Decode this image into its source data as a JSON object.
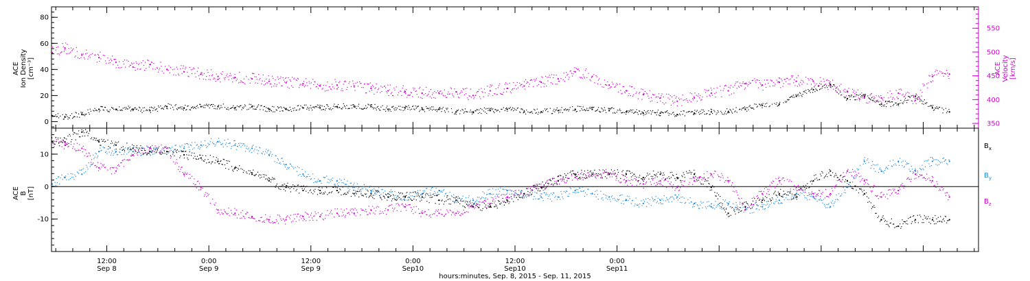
{
  "colors": {
    "density": "#000000",
    "velocity": "#cc00cc",
    "bx": "#000000",
    "by": "#1e88d8",
    "bz": "#cc00cc",
    "frame": "#000000"
  },
  "chart_data": [
    {
      "type": "scatter",
      "panel": "top",
      "ylabel_lines": [
        "ACE",
        "Ion Density",
        "[cm⁻³]"
      ],
      "y2label_lines": [
        "ACE",
        "Velocity",
        "[km/s]"
      ],
      "ylim": [
        -5,
        88
      ],
      "y2lim": [
        340,
        595
      ],
      "yticks": [
        0,
        20,
        40,
        60,
        80
      ],
      "y2ticks": [
        350,
        400,
        450,
        500,
        550
      ],
      "x_unit": "hours since Sep 8, 2015 00:00",
      "xlim": [
        5.5,
        114.5
      ],
      "series": [
        {
          "name": "Ion Density",
          "axis": "left",
          "x": [
            5.5,
            7,
            9,
            11,
            13,
            15,
            17,
            19,
            21,
            23,
            25,
            27,
            29,
            31,
            33,
            35,
            37,
            39,
            41,
            43,
            45,
            47,
            49,
            51,
            53,
            55,
            57,
            59,
            61,
            63,
            65,
            67,
            69,
            71,
            73,
            75,
            77,
            79,
            81,
            83,
            85,
            87,
            89,
            91,
            93,
            95,
            97,
            99,
            101,
            103,
            105,
            107,
            109,
            111
          ],
          "y": [
            5,
            4,
            6,
            10,
            10,
            10,
            9,
            12,
            11,
            12,
            12,
            11,
            12,
            10,
            10,
            11,
            11,
            12,
            12,
            12,
            10,
            11,
            10,
            10,
            8,
            8,
            9,
            10,
            8,
            8,
            9,
            10,
            10,
            9,
            8,
            7,
            7,
            6,
            7,
            8,
            8,
            10,
            13,
            14,
            20,
            25,
            29,
            18,
            20,
            14,
            14,
            20,
            11,
            8
          ]
        },
        {
          "name": "Velocity",
          "axis": "right",
          "x": [
            5.5,
            7,
            9,
            11,
            13,
            15,
            17,
            19,
            21,
            23,
            25,
            27,
            29,
            31,
            33,
            35,
            37,
            39,
            41,
            43,
            45,
            47,
            49,
            51,
            53,
            55,
            57,
            59,
            61,
            63,
            65,
            67,
            69,
            71,
            73,
            75,
            77,
            79,
            81,
            83,
            85,
            87,
            89,
            91,
            93,
            95,
            97,
            99,
            101,
            103,
            105,
            107,
            109,
            111
          ],
          "y": [
            500,
            510,
            495,
            490,
            480,
            470,
            475,
            465,
            460,
            455,
            450,
            448,
            445,
            440,
            437,
            435,
            430,
            432,
            430,
            425,
            420,
            418,
            415,
            415,
            418,
            410,
            420,
            425,
            430,
            438,
            445,
            460,
            450,
            432,
            420,
            412,
            405,
            398,
            405,
            415,
            420,
            435,
            432,
            438,
            440,
            440,
            432,
            418,
            405,
            405,
            415,
            400,
            450,
            455
          ]
        }
      ]
    },
    {
      "type": "scatter",
      "panel": "bottom",
      "ylabel_lines": [
        "ACE",
        "B",
        "[nT]"
      ],
      "ylim": [
        -20,
        18
      ],
      "yticks": [
        -10,
        0,
        10
      ],
      "zero_line": true,
      "x_unit": "hours since Sep 8, 2015 00:00",
      "xlim": [
        5.5,
        114.5
      ],
      "series": [
        {
          "name": "Bₓ",
          "label": "B",
          "sub": "x",
          "x": [
            5.5,
            7,
            9,
            11,
            13,
            15,
            17,
            19,
            21,
            23,
            25,
            27,
            29,
            31,
            33,
            35,
            37,
            39,
            41,
            43,
            45,
            47,
            49,
            51,
            53,
            55,
            57,
            59,
            61,
            63,
            65,
            67,
            69,
            71,
            73,
            75,
            77,
            79,
            81,
            83,
            85,
            87,
            89,
            91,
            93,
            95,
            97,
            99,
            101,
            103,
            105,
            107,
            109,
            111
          ],
          "y": [
            14,
            14,
            17,
            14,
            13,
            12,
            11,
            11,
            10,
            9,
            8,
            6,
            4,
            2,
            0,
            -1,
            -1,
            -1,
            -2,
            -2,
            -3,
            -3,
            -3,
            -4,
            -4,
            -6,
            -6,
            -4,
            -2,
            0,
            2,
            4,
            4,
            4,
            4,
            3,
            4,
            3,
            4,
            0,
            -8,
            -6,
            -4,
            -2,
            -3,
            2,
            5,
            2,
            -2,
            -10,
            -12,
            -10,
            -10,
            -10
          ]
        },
        {
          "name": "Bᵧ",
          "label": "B",
          "sub": "y",
          "x": [
            5.5,
            7,
            9,
            11,
            13,
            15,
            17,
            19,
            21,
            23,
            25,
            27,
            29,
            31,
            33,
            35,
            37,
            39,
            41,
            43,
            45,
            47,
            49,
            51,
            53,
            55,
            57,
            59,
            61,
            63,
            65,
            67,
            69,
            71,
            73,
            75,
            77,
            79,
            81,
            83,
            85,
            87,
            89,
            91,
            93,
            95,
            97,
            99,
            101,
            103,
            105,
            107,
            109,
            111
          ],
          "y": [
            1,
            3,
            4,
            11,
            11,
            11,
            11,
            11,
            12,
            13,
            14,
            13,
            12,
            10,
            7,
            4,
            2,
            2,
            0,
            -1,
            -2,
            -3,
            -2,
            -1,
            -4,
            -4,
            -2,
            -1,
            -2,
            -3,
            -3,
            -1,
            -2,
            -3,
            -4,
            -5,
            -4,
            -3,
            -5,
            -6,
            -5,
            -7,
            -6,
            -4,
            -2,
            -3,
            -6,
            0,
            8,
            5,
            8,
            5,
            8,
            8
          ]
        },
        {
          "name": "Bᶻ",
          "label": "B",
          "sub": "z",
          "x": [
            5.5,
            7,
            9,
            11,
            13,
            15,
            17,
            19,
            21,
            23,
            25,
            27,
            29,
            31,
            33,
            35,
            37,
            39,
            41,
            43,
            45,
            47,
            49,
            51,
            53,
            55,
            57,
            59,
            61,
            63,
            65,
            67,
            69,
            71,
            73,
            75,
            77,
            79,
            81,
            83,
            85,
            87,
            89,
            91,
            93,
            95,
            97,
            99,
            101,
            103,
            105,
            107,
            109,
            111
          ],
          "y": [
            14,
            13,
            12,
            6,
            5,
            10,
            12,
            12,
            4,
            0,
            -7,
            -8,
            -9,
            -10,
            -10,
            -9,
            -9,
            -8,
            -8,
            -7,
            -7,
            -6,
            -8,
            -8,
            -8,
            -6,
            -5,
            -3,
            -2,
            0,
            2,
            3,
            4,
            4,
            2,
            1,
            2,
            0,
            2,
            4,
            2,
            -6,
            -2,
            2,
            0,
            -2,
            -2,
            5,
            2,
            -3,
            -1,
            4,
            2,
            -3
          ]
        }
      ]
    }
  ],
  "xaxis": {
    "ticks": [
      {
        "hour": 12,
        "line1": "12:00",
        "line2": "Sep 8"
      },
      {
        "hour": 24,
        "line1": "0:00",
        "line2": "Sep 9"
      },
      {
        "hour": 36,
        "line1": "12:00",
        "line2": "Sep 9"
      },
      {
        "hour": 48,
        "line1": "0:00",
        "line2": "Sep10"
      },
      {
        "hour": 60,
        "line1": "12:00",
        "line2": "Sep10"
      },
      {
        "hour": 72,
        "line1": "0:00",
        "line2": "Sep11"
      }
    ],
    "xlabel": "hours:minutes, Sep.  8, 2015 - Sep. 11, 2015"
  }
}
